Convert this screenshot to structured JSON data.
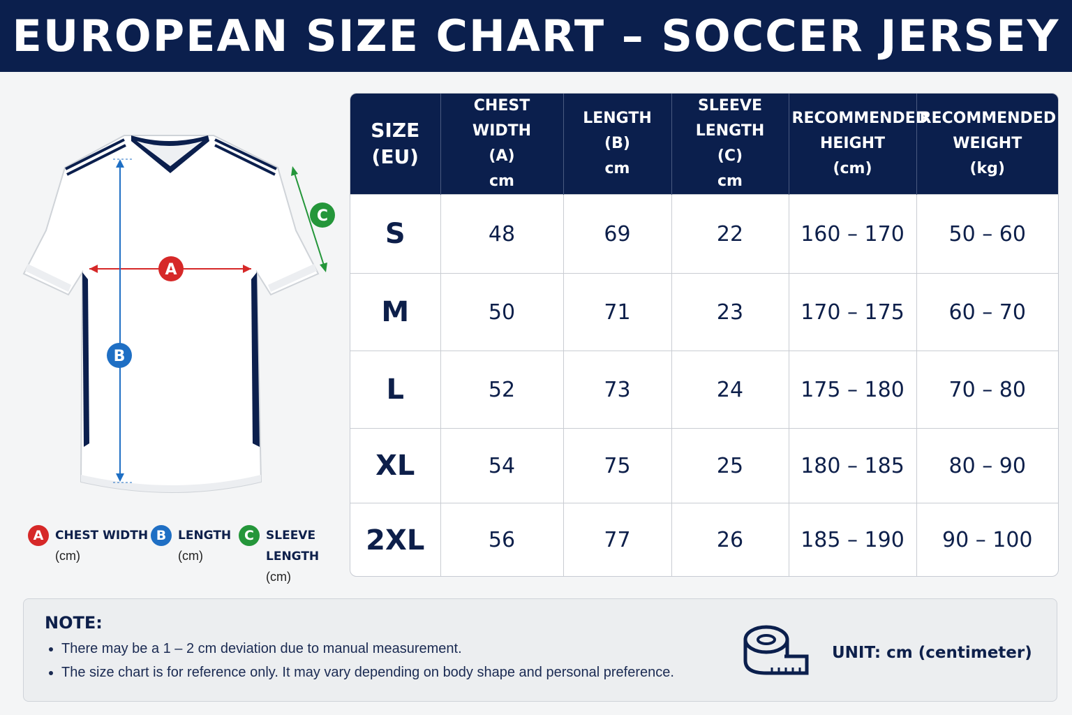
{
  "title": "EUROPEAN SIZE CHART – SOCCER JERSEY",
  "colors": {
    "navy": "#0b1f4d",
    "measure_a": "#d62828",
    "measure_b": "#1f6fc4",
    "measure_c": "#24963a"
  },
  "illustration": {
    "icon": "jersey-icon",
    "markers": {
      "a": "A",
      "b": "B",
      "c": "C"
    }
  },
  "legend": [
    {
      "badge": "A",
      "label": "CHEST WIDTH",
      "unit": "(cm)"
    },
    {
      "badge": "B",
      "label": "LENGTH",
      "unit": "(cm)"
    },
    {
      "badge": "C",
      "label": "SLEEVE LENGTH",
      "unit": "(cm)"
    }
  ],
  "table": {
    "headers": [
      "SIZE\n(EU)",
      "CHEST WIDTH\n(A)\ncm",
      "LENGTH\n(B)\ncm",
      "SLEEVE LENGTH\n(C)\ncm",
      "RECOMMENDED\nHEIGHT\n(cm)",
      "RECOMMENDED\nWEIGHT\n(kg)"
    ],
    "rows": [
      [
        "S",
        "48",
        "69",
        "22",
        "160 – 170",
        "50 – 60"
      ],
      [
        "M",
        "50",
        "71",
        "23",
        "170 – 175",
        "60 – 70"
      ],
      [
        "L",
        "52",
        "73",
        "24",
        "175 – 180",
        "70 – 80"
      ],
      [
        "XL",
        "54",
        "75",
        "25",
        "180 – 185",
        "80 – 90"
      ],
      [
        "2XL",
        "56",
        "77",
        "26",
        "185 – 190",
        "90 – 100"
      ]
    ]
  },
  "note": {
    "title": "NOTE:",
    "items": [
      "There may be a 1 – 2 cm deviation due to manual measurement.",
      "The size chart is for reference only. It may vary depending on body shape and personal preference."
    ],
    "icon": "measuring-tape-icon",
    "unit": "UNIT: cm (centimeter)"
  }
}
